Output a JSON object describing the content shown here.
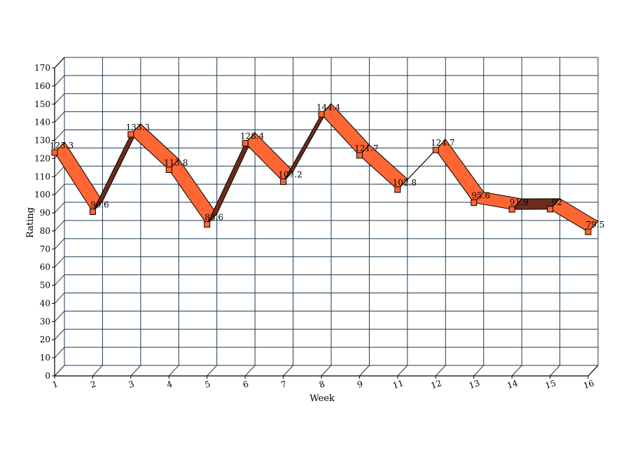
{
  "chart_data": {
    "type": "line",
    "style": "3d ribbon",
    "xlabel": "Week",
    "ylabel": "Rating",
    "ylim": [
      0,
      170
    ],
    "ytick_step": 10,
    "grid": true,
    "categories": [
      "1",
      "2",
      "3",
      "4",
      "5",
      "6",
      "7",
      "8",
      "9",
      "11",
      "12",
      "13",
      "14",
      "15",
      "16"
    ],
    "series": [
      {
        "values": [
          123.3,
          90.6,
          133.3,
          113.8,
          83.6,
          128.4,
          107.2,
          144.4,
          121.7,
          102.8,
          124.7,
          95.6,
          91.9,
          92,
          79.5
        ],
        "labels": [
          "123.3",
          "90.6",
          "133.3",
          "113.8",
          "83.6",
          "128.4",
          "107.2",
          "144.4",
          "121.7",
          "102.8",
          "124.7",
          "95.6",
          "91.9",
          "92",
          "79.5"
        ]
      }
    ],
    "colors": {
      "ribbon_top": "#ff6633",
      "ribbon_side": "#6b2d1a",
      "grid": "#1f3a4d",
      "marker_fill": "#ff6633",
      "connector": "#000000"
    }
  }
}
